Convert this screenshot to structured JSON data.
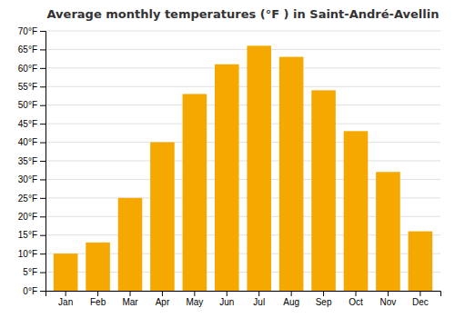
{
  "chart_data": {
    "type": "bar",
    "title": "Average monthly temperatures (°F ) in Saint-André-Avellin",
    "categories": [
      "Jan",
      "Feb",
      "Mar",
      "Apr",
      "May",
      "Jun",
      "Jul",
      "Aug",
      "Sep",
      "Oct",
      "Nov",
      "Dec"
    ],
    "values": [
      10,
      13,
      25,
      40,
      53,
      61,
      66,
      63,
      54,
      43,
      32,
      16
    ],
    "color": "#F5A800",
    "ylim": [
      0,
      70
    ],
    "yticks": [
      {
        "value": 0,
        "label": "0°F"
      },
      {
        "value": 5,
        "label": "5°F"
      },
      {
        "value": 10,
        "label": "10°F"
      },
      {
        "value": 15,
        "label": "15°F"
      },
      {
        "value": 20,
        "label": "20°F"
      },
      {
        "value": 25,
        "label": "25°F"
      },
      {
        "value": 30,
        "label": "30°F"
      },
      {
        "value": 35,
        "label": "35°F"
      },
      {
        "value": 40,
        "label": "40°F"
      },
      {
        "value": 45,
        "label": "45°F"
      },
      {
        "value": 50,
        "label": "50°F"
      },
      {
        "value": 55,
        "label": "55°F"
      },
      {
        "value": 60,
        "label": "60°F"
      },
      {
        "value": 65,
        "label": "65°F"
      },
      {
        "value": 70,
        "label": "70°F"
      }
    ],
    "grid": true
  }
}
